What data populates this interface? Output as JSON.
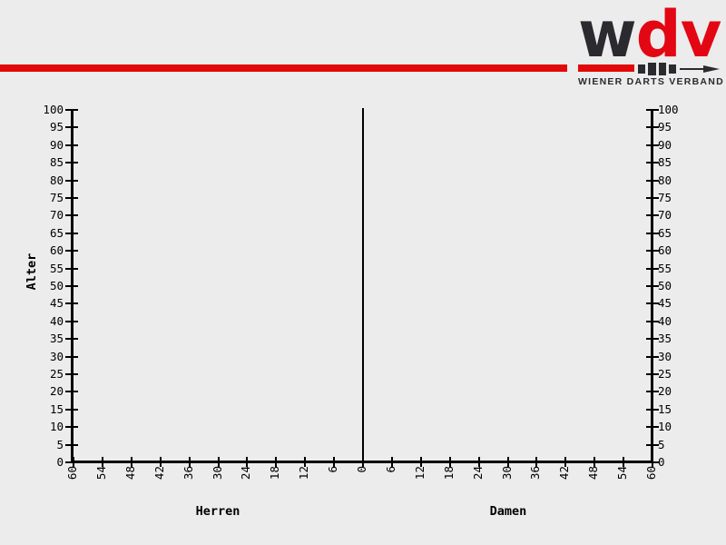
{
  "page": {
    "background": "#ececec"
  },
  "header": {
    "stripe_color": "#e20909",
    "logo": {
      "letters": [
        {
          "char": "w",
          "color": "#2a2a2f"
        },
        {
          "char": "d",
          "color": "#e30613"
        },
        {
          "char": "v",
          "color": "#e30613"
        }
      ],
      "dart_icon": "stylized-dart-arrow",
      "tagline": "WIENER DARTS VERBAND",
      "dark_color": "#2a2a2f",
      "red_color": "#e30613"
    }
  },
  "chart_data": {
    "type": "bar",
    "variant": "population-pyramid",
    "title": "",
    "ylabel": "Alter",
    "left_section_label": "Herren",
    "right_section_label": "Damen",
    "ylim": [
      0,
      100
    ],
    "y_tick_step": 5,
    "y_ticks": [
      0,
      5,
      10,
      15,
      20,
      25,
      30,
      35,
      40,
      45,
      50,
      55,
      60,
      65,
      70,
      75,
      80,
      85,
      90,
      95,
      100
    ],
    "x_side_max": 60,
    "x_tick_step": 6,
    "x_ticks_left": [
      60,
      54,
      48,
      42,
      36,
      30,
      24,
      18,
      12,
      6
    ],
    "x_center_tick": 0,
    "x_ticks_right": [
      6,
      12,
      18,
      24,
      30,
      36,
      42,
      48,
      54,
      60
    ],
    "grid": false,
    "legend": null,
    "axis_color": "#000000",
    "series": [
      {
        "name": "Herren",
        "values": []
      },
      {
        "name": "Damen",
        "values": []
      }
    ]
  }
}
